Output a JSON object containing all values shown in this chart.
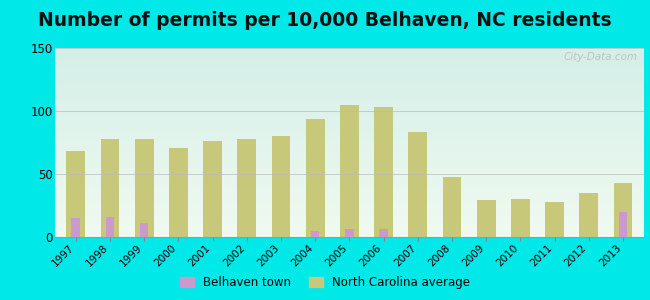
{
  "title": "Number of permits per 10,000 Belhaven, NC residents",
  "years": [
    1997,
    1998,
    1999,
    2000,
    2001,
    2002,
    2003,
    2004,
    2005,
    2006,
    2007,
    2008,
    2009,
    2010,
    2011,
    2012,
    2013
  ],
  "belhaven": [
    15,
    16,
    11,
    0,
    0,
    0,
    0,
    5,
    6,
    6,
    0,
    0,
    0,
    0,
    0,
    0,
    20
  ],
  "nc_avg": [
    68,
    78,
    78,
    71,
    76,
    78,
    80,
    94,
    105,
    103,
    83,
    48,
    29,
    30,
    28,
    35,
    43
  ],
  "belhaven_color": "#cc99cc",
  "nc_avg_color": "#c8c87a",
  "background_outer": "#00e8e8",
  "ylim": [
    0,
    150
  ],
  "yticks": [
    0,
    50,
    100,
    150
  ],
  "title_fontsize": 13.5,
  "nc_bar_width": 0.55,
  "belhaven_bar_width": 0.25,
  "legend_belhaven": "Belhaven town",
  "legend_nc": "North Carolina average",
  "watermark": "City-Data.com"
}
